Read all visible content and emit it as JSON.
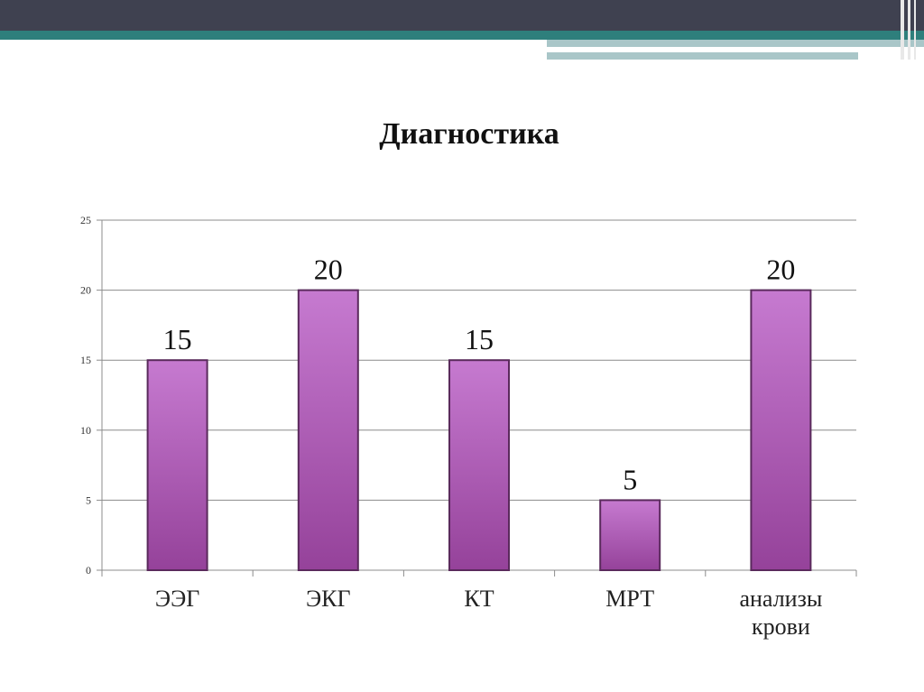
{
  "slide": {
    "title": "Диагностика"
  },
  "colors": {
    "banner_dark": "#3f4150",
    "banner_teal": "#2e7f7c",
    "banner_light": "#a9c6c8",
    "bar_light": "#c67ad0",
    "bar_dark": "#95429a",
    "bar_stroke": "#5a2a5c",
    "grid": "#8c8c8c"
  },
  "chart_data": {
    "type": "bar",
    "title": "Диагностика",
    "categories": [
      "ЭЭГ",
      "ЭКГ",
      "КТ",
      "МРТ",
      "анализы крови"
    ],
    "category_lines": [
      [
        "ЭЭГ"
      ],
      [
        "ЭКГ"
      ],
      [
        "КТ"
      ],
      [
        "МРТ"
      ],
      [
        "анализы",
        "крови"
      ]
    ],
    "values": [
      15,
      20,
      15,
      5,
      20
    ],
    "data_labels": [
      "15",
      "20",
      "15",
      "5",
      "20"
    ],
    "ylim": [
      0,
      25
    ],
    "yticks": [
      "0",
      "5",
      "10",
      "15",
      "20",
      "25"
    ],
    "grid": true,
    "legend": "none"
  }
}
